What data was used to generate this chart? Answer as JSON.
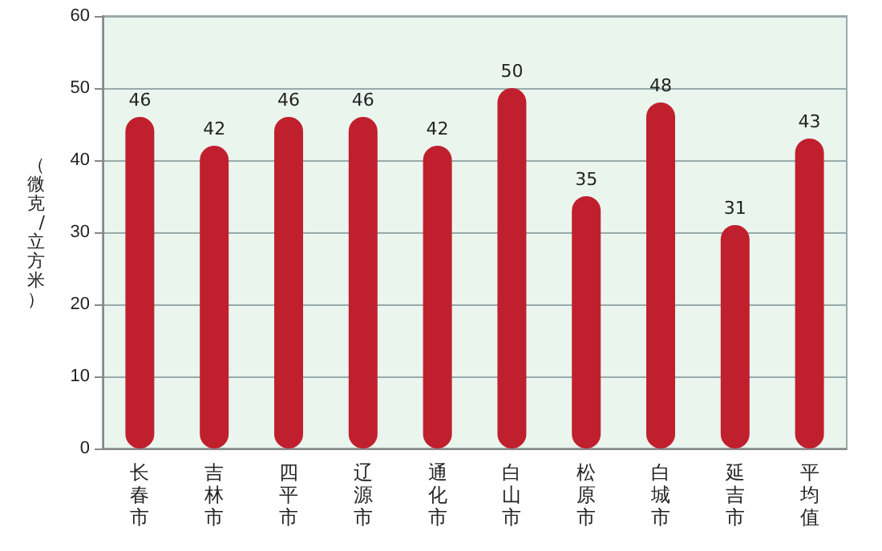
{
  "chart_data": {
    "type": "bar",
    "ylabel": "（微克/立方米）",
    "categories": [
      "长春市",
      "吉林市",
      "四平市",
      "辽源市",
      "通化市",
      "白山市",
      "松原市",
      "白城市",
      "延吉市",
      "平均值"
    ],
    "values": [
      46,
      42,
      46,
      46,
      42,
      50,
      35,
      48,
      31,
      43
    ],
    "color": "#c0202e",
    "ylim": [
      0,
      60
    ],
    "yticks": [
      0,
      10,
      20,
      30,
      40,
      50,
      60
    ],
    "grid": "y",
    "data_labels": true
  }
}
